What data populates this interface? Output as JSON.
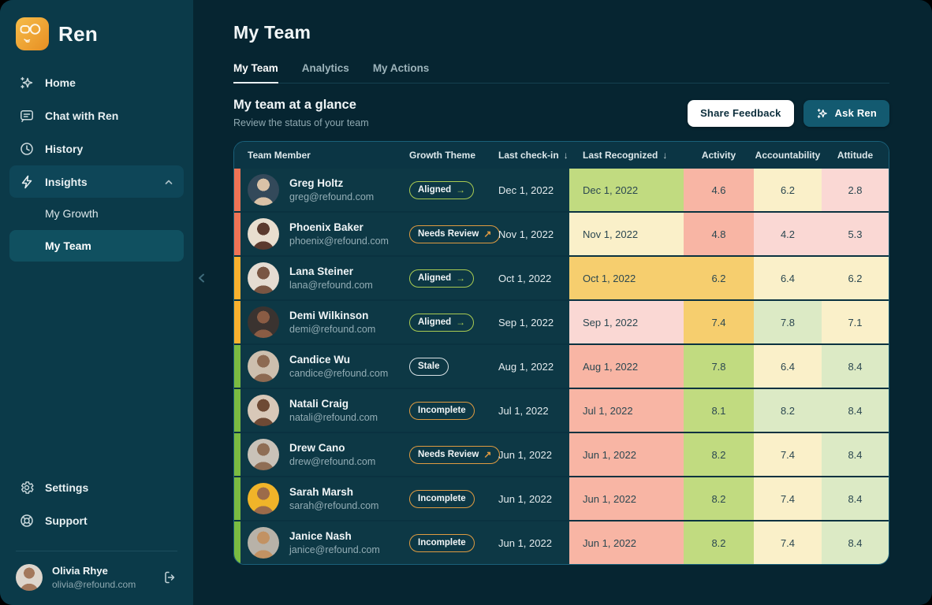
{
  "brand": {
    "name": "Ren"
  },
  "sidebar": {
    "items": [
      {
        "label": "Home",
        "icon": "sparkle-icon"
      },
      {
        "label": "Chat with Ren",
        "icon": "chat-icon"
      },
      {
        "label": "History",
        "icon": "history-icon"
      },
      {
        "label": "Insights",
        "icon": "insights-icon",
        "expanded": true
      }
    ],
    "subitems": [
      {
        "label": "My Growth",
        "active": false
      },
      {
        "label": "My Team",
        "active": true
      }
    ],
    "footer_items": [
      {
        "label": "Settings",
        "icon": "gear-icon"
      },
      {
        "label": "Support",
        "icon": "support-icon"
      }
    ],
    "user": {
      "name": "Olivia Rhye",
      "email": "olivia@refound.com"
    }
  },
  "page": {
    "title": "My Team",
    "tabs": [
      {
        "label": "My Team",
        "active": true
      },
      {
        "label": "Analytics",
        "active": false
      },
      {
        "label": "My Actions",
        "active": false
      }
    ]
  },
  "section": {
    "title": "My team at a glance",
    "subtitle": "Review the status of your team",
    "share_button": "Share Feedback",
    "ask_button": "Ask Ren"
  },
  "table": {
    "sort_indicator": "↓",
    "columns": [
      {
        "label": "Team Member",
        "sorted": false
      },
      {
        "label": "Growth Theme",
        "sorted": false
      },
      {
        "label": "Last check-in",
        "sorted": true
      },
      {
        "label": "Last Recognized",
        "sorted": true
      },
      {
        "label": "Activity",
        "sorted": false
      },
      {
        "label": "Accountability",
        "sorted": false
      },
      {
        "label": "Attitude",
        "sorted": false
      }
    ],
    "rows": [
      {
        "name": "Greg Holtz",
        "email": "greg@refound.com",
        "badge": {
          "label": "Aligned",
          "arrow": "→",
          "type": "badge_aligned"
        },
        "last_checkin": "Dec 1, 2022",
        "last_recognized": {
          "text": "Dec 1, 2022",
          "color": "green"
        },
        "activity": {
          "value": "4.6",
          "color": "salmon"
        },
        "accountability": {
          "value": "6.2",
          "color": "paleyellow"
        },
        "attitude": {
          "value": "2.8",
          "color": "pink"
        },
        "strip": "strip_red",
        "avatar": {
          "bg": "#33495a",
          "fg": "#d9c2a7"
        }
      },
      {
        "name": "Phoenix Baker",
        "email": "phoenix@refound.com",
        "badge": {
          "label": "Needs Review",
          "arrow": "↗",
          "type": "badge_review"
        },
        "last_checkin": "Nov 1, 2022",
        "last_recognized": {
          "text": "Nov 1, 2022",
          "color": "paleyellow"
        },
        "activity": {
          "value": "4.8",
          "color": "salmon"
        },
        "accountability": {
          "value": "4.2",
          "color": "pink"
        },
        "attitude": {
          "value": "5.3",
          "color": "pink"
        },
        "strip": "strip_red",
        "avatar": {
          "bg": "#e8decf",
          "fg": "#5b3a2e"
        }
      },
      {
        "name": "Lana Steiner",
        "email": "lana@refound.com",
        "badge": {
          "label": "Aligned",
          "arrow": "→",
          "type": "badge_aligned"
        },
        "last_checkin": "Oct 1, 2022",
        "last_recognized": {
          "text": "Oct 1, 2022",
          "color": "amber"
        },
        "activity": {
          "value": "6.2",
          "color": "amber"
        },
        "accountability": {
          "value": "6.4",
          "color": "paleyellow"
        },
        "attitude": {
          "value": "6.2",
          "color": "paleyellow"
        },
        "strip": "strip_amber",
        "avatar": {
          "bg": "#e5dcd2",
          "fg": "#7a5643"
        }
      },
      {
        "name": "Demi Wilkinson",
        "email": "demi@refound.com",
        "badge": {
          "label": "Aligned",
          "arrow": "→",
          "type": "badge_aligned"
        },
        "last_checkin": "Sep 1, 2022",
        "last_recognized": {
          "text": "Sep 1, 2022",
          "color": "pink"
        },
        "activity": {
          "value": "7.4",
          "color": "amber"
        },
        "accountability": {
          "value": "7.8",
          "color": "lightgreen"
        },
        "attitude": {
          "value": "7.1",
          "color": "paleyellow"
        },
        "strip": "strip_amber",
        "avatar": {
          "bg": "#3a3330",
          "fg": "#8a5c44"
        }
      },
      {
        "name": "Candice Wu",
        "email": "candice@refound.com",
        "badge": {
          "label": "Stale",
          "type": "badge_stale"
        },
        "last_checkin": "Aug 1, 2022",
        "last_recognized": {
          "text": "Aug 1, 2022",
          "color": "salmon"
        },
        "activity": {
          "value": "7.8",
          "color": "green"
        },
        "accountability": {
          "value": "6.4",
          "color": "paleyellow"
        },
        "attitude": {
          "value": "8.4",
          "color": "lightgreen"
        },
        "strip": "strip_green",
        "avatar": {
          "bg": "#cdbfae",
          "fg": "#8d6a52"
        }
      },
      {
        "name": "Natali Craig",
        "email": "natali@refound.com",
        "badge": {
          "label": "Incomplete",
          "type": "badge_incomplete"
        },
        "last_checkin": "Jul 1, 2022",
        "last_recognized": {
          "text": "Jul 1, 2022",
          "color": "salmon"
        },
        "activity": {
          "value": "8.1",
          "color": "green"
        },
        "accountability": {
          "value": "8.2",
          "color": "lightgreen"
        },
        "attitude": {
          "value": "8.4",
          "color": "lightgreen"
        },
        "strip": "strip_green",
        "avatar": {
          "bg": "#d8c8b8",
          "fg": "#6e4a35"
        }
      },
      {
        "name": "Drew Cano",
        "email": "drew@refound.com",
        "badge": {
          "label": "Needs Review",
          "arrow": "↗",
          "type": "badge_review"
        },
        "last_checkin": "Jun 1, 2022",
        "last_recognized": {
          "text": "Jun 1, 2022",
          "color": "salmon"
        },
        "activity": {
          "value": "8.2",
          "color": "green"
        },
        "accountability": {
          "value": "7.4",
          "color": "paleyellow"
        },
        "attitude": {
          "value": "8.4",
          "color": "lightgreen"
        },
        "strip": "strip_green",
        "avatar": {
          "bg": "#c9c2b8",
          "fg": "#8f6e55"
        }
      },
      {
        "name": "Sarah Marsh",
        "email": "sarah@refound.com",
        "badge": {
          "label": "Incomplete",
          "type": "badge_incomplete"
        },
        "last_checkin": "Jun 1, 2022",
        "last_recognized": {
          "text": "Jun 1, 2022",
          "color": "salmon"
        },
        "activity": {
          "value": "8.2",
          "color": "green"
        },
        "accountability": {
          "value": "7.4",
          "color": "paleyellow"
        },
        "attitude": {
          "value": "8.4",
          "color": "lightgreen"
        },
        "strip": "strip_green",
        "avatar": {
          "bg": "#f0b429",
          "fg": "#9c6b4a"
        }
      },
      {
        "name": "Janice Nash",
        "email": "janice@refound.com",
        "badge": {
          "label": "Incomplete",
          "type": "badge_incomplete"
        },
        "last_checkin": "Jun 1, 2022",
        "last_recognized": {
          "text": "Jun 1, 2022",
          "color": "salmon"
        },
        "activity": {
          "value": "8.2",
          "color": "green"
        },
        "accountability": {
          "value": "7.4",
          "color": "paleyellow"
        },
        "attitude": {
          "value": "8.4",
          "color": "lightgreen"
        },
        "strip": "strip_green",
        "avatar": {
          "bg": "#b8b2a8",
          "fg": "#c29263"
        }
      }
    ]
  },
  "colors": {
    "green": "#C1DB80",
    "lightgreen": "#DCEAC5",
    "paleyellow": "#FAF0C9",
    "amber": "#F6CE6E",
    "salmon": "#F8B5A4",
    "pink": "#FAD8D4",
    "strip_red": "#EF7355",
    "strip_amber": "#F8B12E",
    "strip_green": "#7ABB41",
    "badge_aligned": "#A9CB52",
    "badge_review": "#DF9B41",
    "badge_incomplete": "#DF9B41",
    "badge_stale": "#D9E2E5",
    "accent_button": "#135A70"
  }
}
